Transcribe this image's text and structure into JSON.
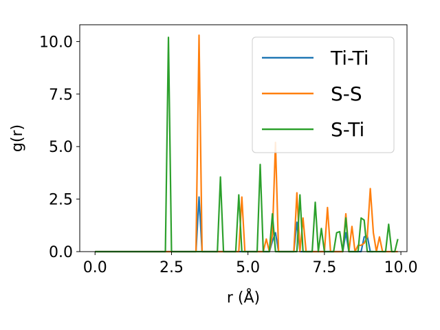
{
  "chart_data": {
    "type": "line",
    "title": "",
    "xlabel": "r (Å)",
    "ylabel": "g(r)",
    "xlim": [
      -0.5,
      10.2
    ],
    "ylim": [
      0,
      10.8
    ],
    "xticks": [
      0.0,
      2.5,
      5.0,
      7.5,
      10.0
    ],
    "xtick_labels": [
      "0.0",
      "2.5",
      "5.0",
      "7.5",
      "10.0"
    ],
    "yticks": [
      0.0,
      2.5,
      5.0,
      7.5,
      10.0
    ],
    "ytick_labels": [
      "0.0",
      "2.5",
      "5.0",
      "7.5",
      "10.0"
    ],
    "grid": false,
    "legend_position": "top-right",
    "series": [
      {
        "name": "Ti-Ti",
        "color": "#1f77b4",
        "x": [
          0.0,
          3.3,
          3.4,
          3.5,
          5.7,
          5.8,
          5.9,
          6.0,
          6.5,
          6.6,
          6.7,
          8.1,
          8.2,
          8.3,
          8.7,
          8.8,
          8.9,
          9.0,
          9.1
        ],
        "y": [
          0.0,
          0.0,
          2.6,
          0.0,
          0.0,
          0.5,
          0.9,
          0.0,
          0.0,
          1.4,
          0.0,
          0.0,
          0.9,
          0.0,
          0.0,
          0.7,
          0.75,
          0.0,
          0.0
        ]
      },
      {
        "name": "S-S",
        "color": "#ff7f0e",
        "x": [
          0.0,
          3.3,
          3.4,
          3.5,
          4.7,
          4.8,
          4.9,
          5.5,
          5.6,
          5.7,
          5.8,
          5.9,
          6.0,
          6.5,
          6.6,
          6.7,
          6.8,
          6.9,
          7.5,
          7.6,
          7.7,
          8.1,
          8.2,
          8.3,
          8.4,
          8.5,
          8.6,
          8.7,
          8.8,
          8.9,
          9.0,
          9.1,
          9.2,
          9.3,
          9.4,
          9.5,
          9.6,
          9.7,
          9.8,
          9.9
        ],
        "y": [
          0.0,
          0.0,
          10.3,
          0.0,
          0.0,
          2.6,
          0.0,
          0.0,
          0.6,
          0.0,
          0.8,
          5.2,
          0.0,
          0.0,
          2.8,
          0.0,
          1.6,
          0.0,
          0.0,
          2.1,
          0.0,
          0.0,
          1.8,
          0.0,
          1.2,
          0.0,
          0.3,
          0.3,
          0.4,
          0.7,
          3.0,
          0.9,
          0.0,
          0.7,
          0.0,
          0.0,
          0.0,
          0.0,
          0.0,
          0.0
        ]
      },
      {
        "name": "S-Ti",
        "color": "#2ca02c",
        "x": [
          0.0,
          2.3,
          2.4,
          2.5,
          3.9,
          4.0,
          4.1,
          4.2,
          4.5,
          4.6,
          4.7,
          4.8,
          5.3,
          5.4,
          5.5,
          5.7,
          5.8,
          5.9,
          6.6,
          6.7,
          6.8,
          7.1,
          7.2,
          7.3,
          7.4,
          7.5,
          7.8,
          7.9,
          8.0,
          8.1,
          8.2,
          8.3,
          8.5,
          8.6,
          8.7,
          8.8,
          8.9,
          9.0,
          9.5,
          9.6,
          9.7,
          9.8,
          9.9
        ],
        "y": [
          0.0,
          0.0,
          10.2,
          0.0,
          0.0,
          0.0,
          3.55,
          0.0,
          0.0,
          0.0,
          2.7,
          0.0,
          0.0,
          4.15,
          0.0,
          0.0,
          1.8,
          0.0,
          0.0,
          2.7,
          0.0,
          0.0,
          2.35,
          0.0,
          1.1,
          0.0,
          0.0,
          0.9,
          0.95,
          0.0,
          1.6,
          0.0,
          0.0,
          0.0,
          1.6,
          1.5,
          0.0,
          0.0,
          0.0,
          1.3,
          0.0,
          0.0,
          0.6
        ]
      }
    ]
  }
}
